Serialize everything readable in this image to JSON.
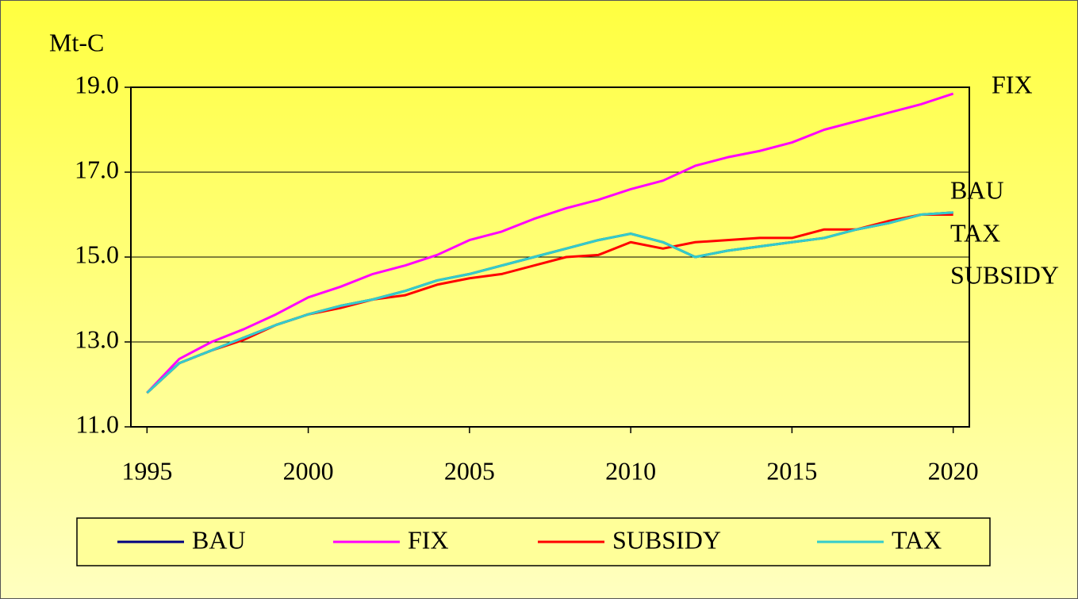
{
  "chart_data": {
    "type": "line",
    "y_label": "Mt-C",
    "x": [
      1995,
      1996,
      1997,
      1998,
      1999,
      2000,
      2001,
      2002,
      2003,
      2004,
      2005,
      2006,
      2007,
      2008,
      2009,
      2010,
      2011,
      2012,
      2013,
      2014,
      2015,
      2016,
      2017,
      2018,
      2019,
      2020
    ],
    "series": [
      {
        "name": "BAU",
        "color": "#000080",
        "values": [
          11.8,
          12.5,
          12.8,
          13.1,
          13.4,
          13.65,
          13.85,
          14.0,
          14.2,
          14.45,
          14.6,
          14.8,
          15.0,
          15.2,
          15.4,
          15.55,
          15.35,
          15.0,
          15.15,
          15.25,
          15.35,
          15.45,
          15.65,
          15.8,
          16.0,
          16.05
        ]
      },
      {
        "name": "FIX",
        "color": "#ff00ff",
        "values": [
          11.8,
          12.6,
          13.0,
          13.3,
          13.65,
          14.05,
          14.3,
          14.6,
          14.8,
          15.05,
          15.4,
          15.6,
          15.9,
          16.15,
          16.35,
          16.6,
          16.8,
          17.15,
          17.35,
          17.5,
          17.7,
          18.0,
          18.2,
          18.4,
          18.6,
          18.85
        ]
      },
      {
        "name": "SUBSIDY",
        "color": "#ff0000",
        "values": [
          11.8,
          12.5,
          12.8,
          13.05,
          13.4,
          13.65,
          13.8,
          14.0,
          14.1,
          14.35,
          14.5,
          14.6,
          14.8,
          15.0,
          15.05,
          15.35,
          15.2,
          15.35,
          15.4,
          15.45,
          15.45,
          15.65,
          15.65,
          15.85,
          16.0,
          16.0
        ]
      },
      {
        "name": "TAX",
        "color": "#33cccc",
        "values": [
          11.8,
          12.5,
          12.8,
          13.1,
          13.4,
          13.65,
          13.85,
          14.0,
          14.2,
          14.45,
          14.6,
          14.8,
          15.0,
          15.2,
          15.4,
          15.55,
          15.35,
          15.0,
          15.15,
          15.25,
          15.35,
          15.45,
          15.65,
          15.8,
          16.0,
          16.05
        ]
      }
    ],
    "annotations": [
      "FIX",
      "BAU",
      "TAX",
      "SUBSIDY"
    ],
    "xlim": [
      1994.5,
      2020.5
    ],
    "xticks": [
      1995,
      2000,
      2005,
      2010,
      2015,
      2020
    ],
    "ylim": [
      11,
      19
    ],
    "yticks": [
      {
        "value": 11,
        "label": "11.0"
      },
      {
        "value": 13,
        "label": "13.0"
      },
      {
        "value": 15,
        "label": "15.0"
      },
      {
        "value": 17,
        "label": "17.0"
      },
      {
        "value": 19,
        "label": "19.0"
      }
    ],
    "grid": true,
    "legend": "bottom"
  }
}
